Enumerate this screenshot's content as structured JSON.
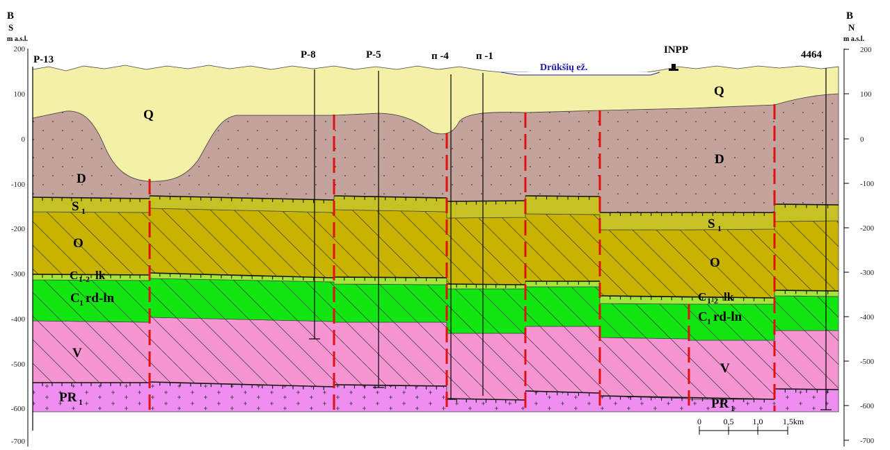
{
  "corners": {
    "left": {
      "letter": "B",
      "direction": "S",
      "unit": "m a.s.l."
    },
    "right": {
      "letter": "B",
      "direction": "N",
      "unit": "m a.s.l."
    }
  },
  "axis": {
    "left_ticks": [
      "200",
      "100",
      "0",
      "-100",
      "-200",
      "-300",
      "-400",
      "-500",
      "-600",
      "-700"
    ],
    "right_ticks": [
      "200",
      "100",
      "0",
      "-100",
      "-200",
      "-300",
      "-400",
      "-500",
      "-600",
      "-700"
    ]
  },
  "wells": [
    "P-13",
    "P-8",
    "P-5",
    "п -4",
    "п -1",
    "4464"
  ],
  "landmarks": {
    "lake": "Drūkšių ež.",
    "plant": "INPP"
  },
  "units": {
    "Q": "Q",
    "D": "D",
    "S": {
      "base": "S",
      "sub": "1"
    },
    "O": "O",
    "C12": {
      "base": "C",
      "sub": "1-2",
      "suffix": "lk"
    },
    "C1": {
      "base": "C",
      "sub": "1",
      "suffix": "rd-ln"
    },
    "V": "V",
    "PR": {
      "base": "PR",
      "sub": "1"
    }
  },
  "scale_bar": {
    "labels": [
      "0",
      "0,5",
      "1,0",
      "1,5km"
    ]
  },
  "colors": {
    "quaternary": "#f5f0a8",
    "devonian": "#c4a39c",
    "silurian": "#c6c224",
    "ordovician": "#c8b400",
    "c12": "#a6e63a",
    "c1": "#12e612",
    "vendian": "#f596d2",
    "proterozoic": "#ee8ef0",
    "fault": "#e01010"
  }
}
